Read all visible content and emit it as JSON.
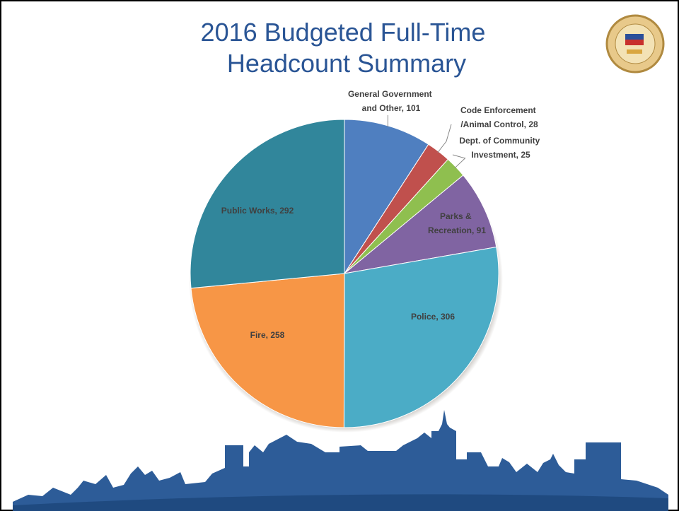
{
  "chart_data": {
    "type": "pie",
    "title": "2016 Budgeted Full-Time Headcount Summary",
    "values": [
      101,
      28,
      25,
      91,
      306,
      258,
      292
    ],
    "value_labels": [
      "General Government and Other, 101",
      "Code Enforcement /Animal Control, 28",
      "Dept. of Community Investment, 25",
      "Parks & Recreation, 91",
      "Police, 306",
      "Fire, 258",
      "Public Works, 292"
    ],
    "colors": [
      "#4f7fc0",
      "#c0504d",
      "#8fbf4f",
      "#8064a2",
      "#4bacc6",
      "#f79646",
      "#31869b"
    ]
  }
}
